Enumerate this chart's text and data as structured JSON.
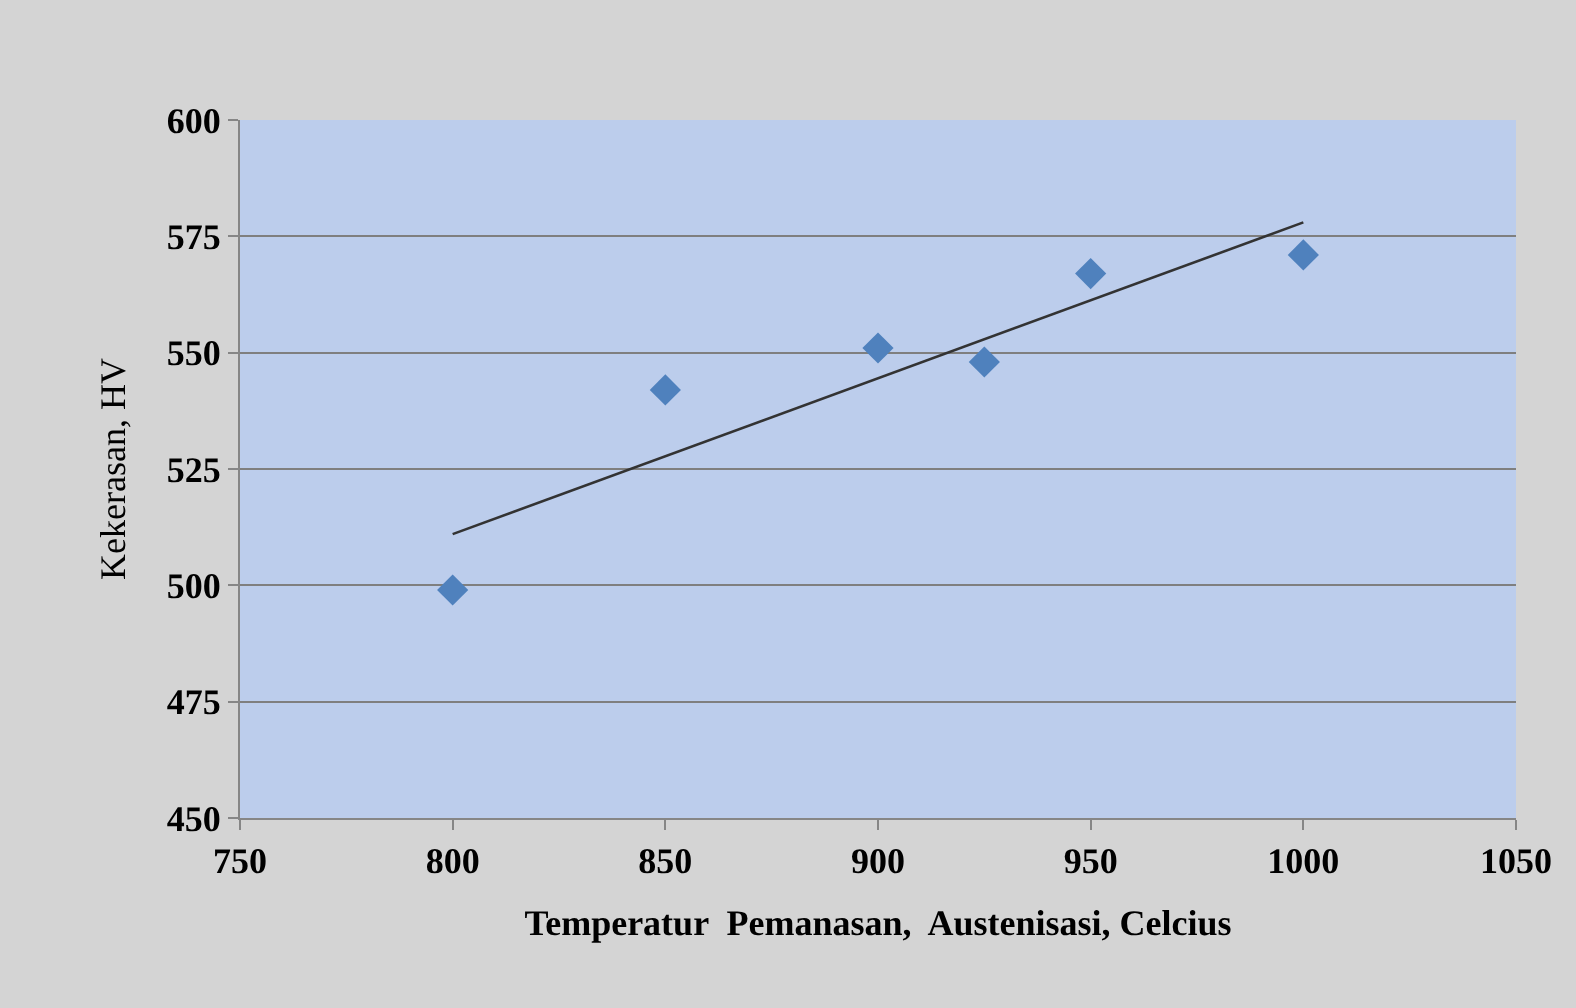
{
  "chart_data": {
    "type": "scatter",
    "xlabel": "Temperatur  Pemanasan,  Austenisasi, Celcius",
    "ylabel": "Kekerasan, HV",
    "xlim": [
      750,
      1050
    ],
    "xticks": [
      750,
      800,
      850,
      900,
      950,
      1000,
      1050
    ],
    "ylim": [
      450,
      600
    ],
    "yticks": [
      450,
      475,
      500,
      525,
      550,
      575,
      600
    ],
    "grid": "y",
    "marker": "diamond",
    "series": [
      {
        "color": "#4f81bd",
        "x": [
          800,
          850,
          900,
          925,
          950,
          1000
        ],
        "values": [
          499,
          542,
          551,
          548,
          567,
          571
        ]
      },
      {
        "type": "line",
        "color": "#333333",
        "x": [
          800,
          1000
        ],
        "values": [
          511,
          578
        ],
        "marker": "none",
        "line_style": "solid"
      }
    ]
  }
}
